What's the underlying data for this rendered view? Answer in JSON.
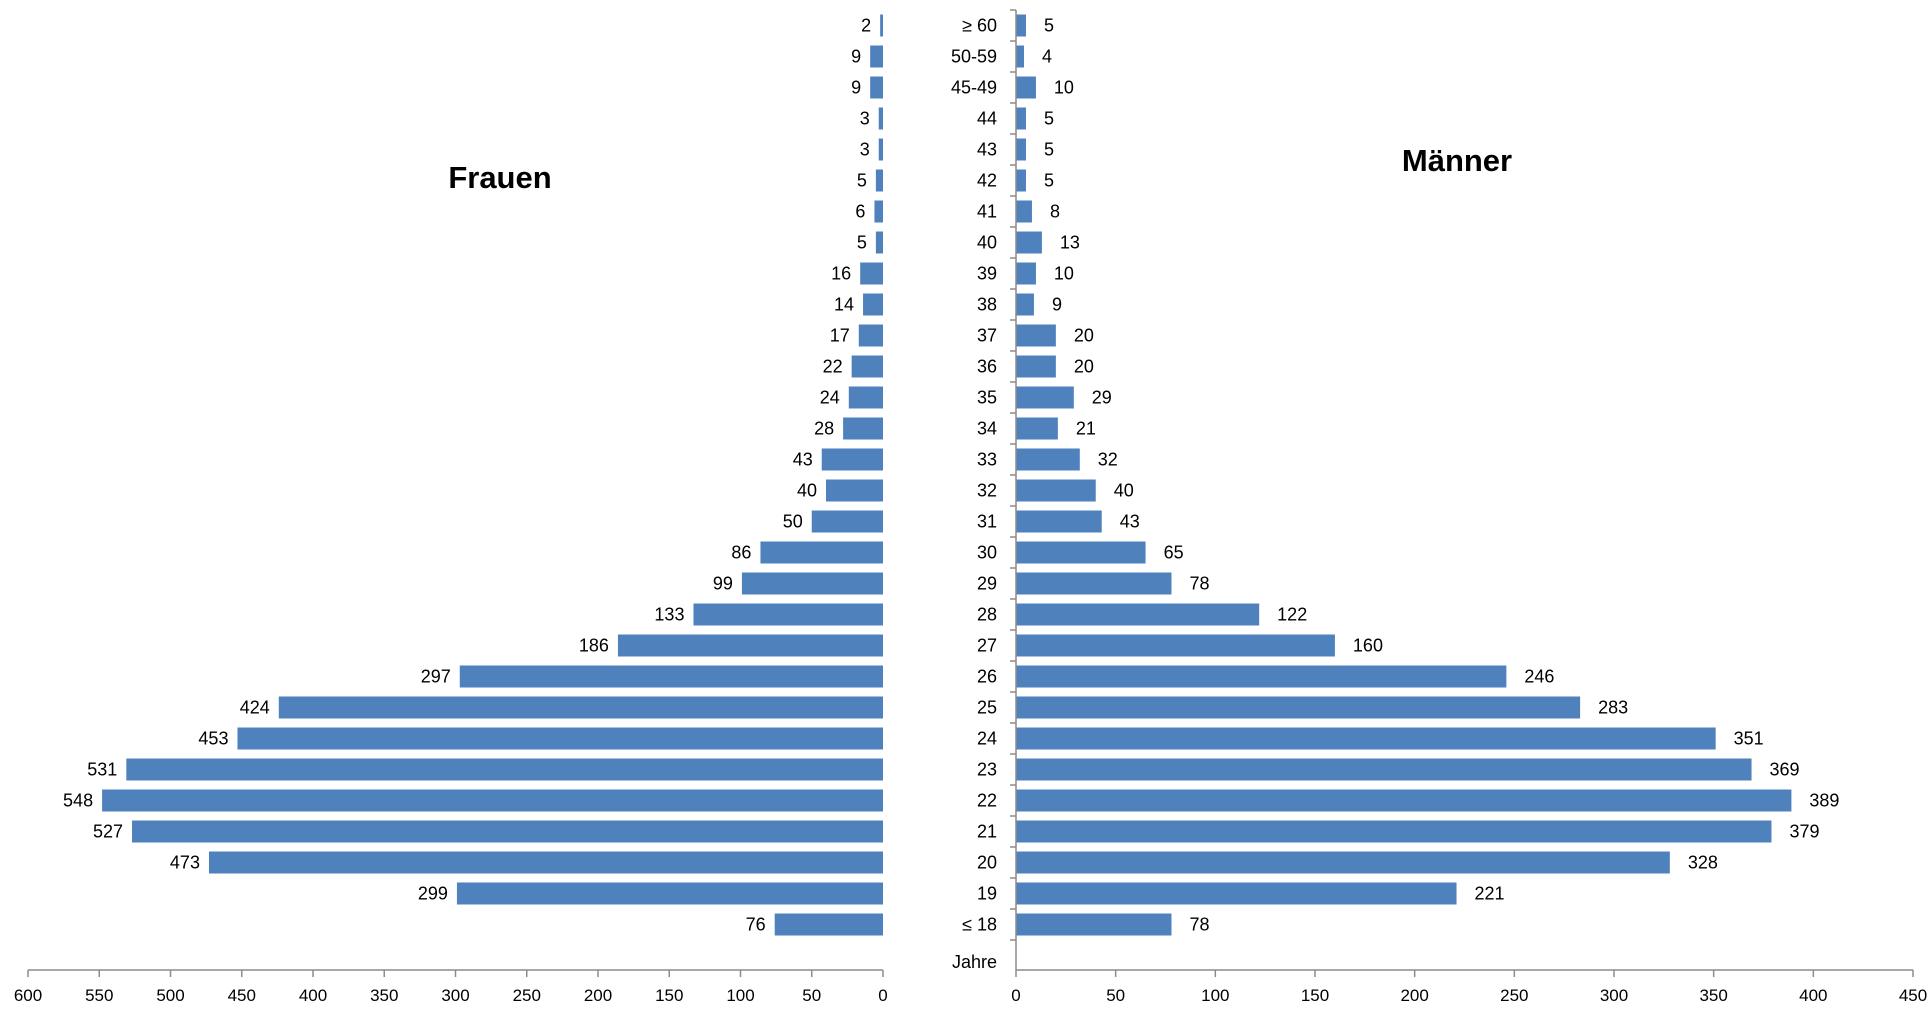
{
  "chart_data": [
    {
      "type": "bar",
      "orientation": "horizontal",
      "title": "Frauen",
      "xlim": [
        0,
        600
      ],
      "x_reversed": true,
      "xticks": [
        "600",
        "550",
        "500",
        "450",
        "400",
        "350",
        "300",
        "250",
        "200",
        "150",
        "100",
        "50",
        "0"
      ],
      "categories": [
        "≥ 60",
        "50-59",
        "45-49",
        "44",
        "43",
        "42",
        "41",
        "40",
        "39",
        "38",
        "37",
        "36",
        "35",
        "34",
        "33",
        "32",
        "31",
        "30",
        "29",
        "28",
        "27",
        "26",
        "25",
        "24",
        "23",
        "22",
        "21",
        "20",
        "19",
        "≤ 18"
      ],
      "values": [
        2,
        9,
        9,
        3,
        3,
        5,
        6,
        5,
        16,
        14,
        17,
        22,
        24,
        28,
        43,
        40,
        50,
        86,
        99,
        133,
        186,
        297,
        424,
        453,
        531,
        548,
        527,
        473,
        299,
        76
      ],
      "bar_color": "#4f81bd",
      "grid": false
    },
    {
      "type": "bar",
      "orientation": "horizontal",
      "title": "Männer",
      "ylabel": "Jahre",
      "xlim": [
        0,
        450
      ],
      "xticks": [
        "0",
        "50",
        "100",
        "150",
        "200",
        "250",
        "300",
        "350",
        "400",
        "450"
      ],
      "categories": [
        "≥ 60",
        "50-59",
        "45-49",
        "44",
        "43",
        "42",
        "41",
        "40",
        "39",
        "38",
        "37",
        "36",
        "35",
        "34",
        "33",
        "32",
        "31",
        "30",
        "29",
        "28",
        "27",
        "26",
        "25",
        "24",
        "23",
        "22",
        "21",
        "20",
        "19",
        "≤ 18"
      ],
      "values": [
        5,
        4,
        10,
        5,
        5,
        5,
        8,
        13,
        10,
        9,
        20,
        20,
        29,
        21,
        32,
        40,
        43,
        65,
        78,
        122,
        160,
        246,
        283,
        351,
        369,
        389,
        379,
        328,
        221,
        78
      ],
      "bar_color": "#4f81bd",
      "grid": false
    }
  ]
}
